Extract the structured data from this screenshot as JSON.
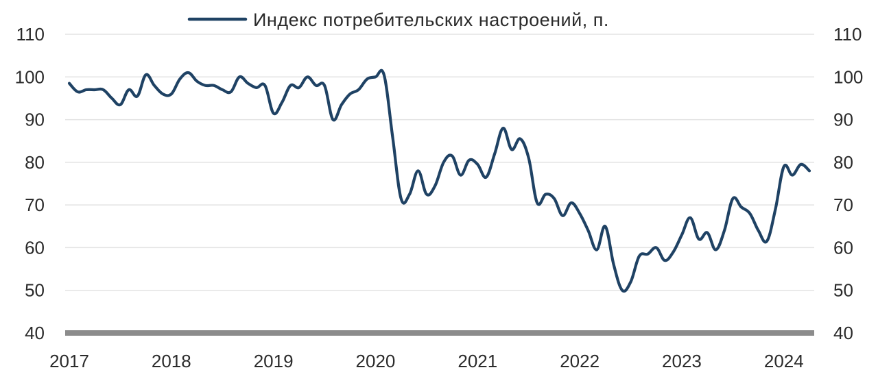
{
  "chart_data": {
    "type": "line",
    "title": "",
    "xlabel": "",
    "ylabel": "",
    "ylim": [
      40,
      110
    ],
    "y_ticks": [
      40,
      50,
      60,
      70,
      80,
      90,
      100,
      110
    ],
    "y_tick_labels": [
      "40",
      "50",
      "60",
      "70",
      "80",
      "90",
      "100",
      "110"
    ],
    "secondary_y_axis": true,
    "x_ticks": [
      2017,
      2018,
      2019,
      2020,
      2021,
      2022,
      2023,
      2024
    ],
    "x_tick_labels": [
      "2017",
      "2018",
      "2019",
      "2020",
      "2021",
      "2022",
      "2023",
      "2024"
    ],
    "grid": "horizontal",
    "legend_position": "top-center",
    "colors": {
      "series": "#1f4264",
      "grid": "#e3e3e3",
      "baseline": "#8c8c8c",
      "text": "#2b2b2b"
    },
    "series": [
      {
        "name": "Индекс потребительских настроений, п.",
        "x": [
          2017.0,
          2017.083,
          2017.167,
          2017.25,
          2017.333,
          2017.417,
          2017.5,
          2017.583,
          2017.667,
          2017.75,
          2017.833,
          2017.917,
          2018.0,
          2018.083,
          2018.167,
          2018.25,
          2018.333,
          2018.417,
          2018.5,
          2018.583,
          2018.667,
          2018.75,
          2018.833,
          2018.917,
          2019.0,
          2019.083,
          2019.167,
          2019.25,
          2019.333,
          2019.417,
          2019.5,
          2019.583,
          2019.667,
          2019.75,
          2019.833,
          2019.917,
          2020.0,
          2020.083,
          2020.167,
          2020.25,
          2020.333,
          2020.417,
          2020.5,
          2020.583,
          2020.667,
          2020.75,
          2020.833,
          2020.917,
          2021.0,
          2021.083,
          2021.167,
          2021.25,
          2021.333,
          2021.417,
          2021.5,
          2021.583,
          2021.667,
          2021.75,
          2021.833,
          2021.917,
          2022.0,
          2022.083,
          2022.167,
          2022.25,
          2022.333,
          2022.417,
          2022.5,
          2022.583,
          2022.667,
          2022.75,
          2022.833,
          2022.917,
          2023.0,
          2023.083,
          2023.167,
          2023.25,
          2023.333,
          2023.417,
          2023.5,
          2023.583,
          2023.667,
          2023.75,
          2023.833,
          2023.917,
          2024.0,
          2024.083,
          2024.167,
          2024.25
        ],
        "y": [
          98.5,
          96.5,
          97.0,
          97.0,
          97.0,
          95.0,
          93.5,
          97.0,
          95.5,
          100.5,
          98.0,
          96.0,
          96.0,
          99.5,
          101.0,
          99.0,
          98.0,
          98.0,
          97.0,
          96.5,
          100.0,
          98.5,
          97.5,
          98.0,
          91.5,
          94.0,
          98.0,
          97.5,
          100.0,
          98.0,
          98.0,
          90.0,
          93.5,
          96.0,
          97.0,
          99.5,
          100.0,
          100.5,
          86.0,
          71.5,
          72.5,
          78.0,
          72.5,
          74.5,
          80.0,
          81.5,
          77.0,
          80.5,
          79.5,
          76.5,
          82.0,
          88.0,
          83.0,
          85.5,
          81.0,
          70.5,
          72.5,
          71.5,
          67.5,
          70.5,
          68.0,
          64.0,
          59.5,
          65.0,
          56.0,
          50.0,
          52.0,
          58.0,
          58.5,
          60.0,
          57.0,
          59.0,
          63.0,
          67.0,
          62.0,
          63.5,
          59.5,
          64.0,
          71.5,
          69.5,
          68.0,
          64.0,
          61.5,
          69.0,
          79.0,
          77.0,
          79.5,
          78.0
        ]
      }
    ]
  }
}
